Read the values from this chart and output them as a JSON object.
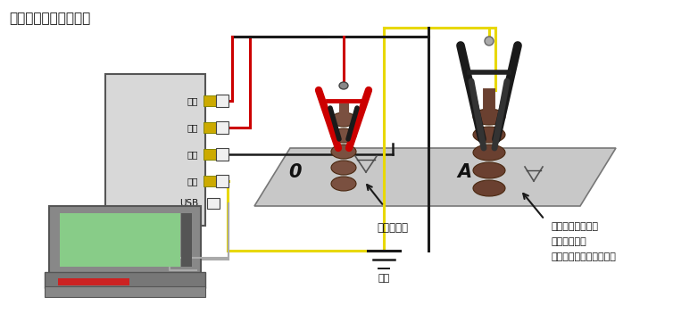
{
  "title": "变压器绕组变形测试仪",
  "bg_color": "#ffffff",
  "device_color": "#d8d8d8",
  "device_labels": [
    "信号",
    "输入",
    "输出",
    "接地",
    "USB"
  ],
  "platform_color": "#c8c8c8",
  "label_被试变压器": "被试变压器",
  "label_接地": "接地",
  "label_测试钳1": "测试钳尾端接地点",
  "label_测试钳2": "要求就近接地",
  "label_测试钳3": "（接套管下的压紧螺钉）",
  "red_color": "#cc0000",
  "yellow_color": "#e8d800",
  "black_color": "#1a1a1a",
  "gray_color": "#b0b0b0",
  "brown_color": "#7a5040",
  "dark_brown": "#4a2810"
}
